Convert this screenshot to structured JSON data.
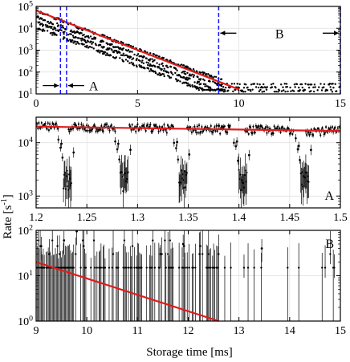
{
  "figure": {
    "ylabel": "Rate [s",
    "ylabel_sup": "-1",
    "ylabel_end": "]",
    "xlabel": "Storage time [ms]"
  },
  "chart_data": [
    {
      "panel": "top",
      "type": "scatter",
      "title": "",
      "xlim": [
        0,
        15
      ],
      "ylim": [
        10,
        100000
      ],
      "yscale": "log",
      "x_ticks": [
        "0",
        "5",
        "10",
        "15"
      ],
      "y_ticks": [
        "10^1",
        "10^2",
        "10^3",
        "10^4",
        "10^5"
      ],
      "grid": true,
      "series": [
        {
          "style": "black dots",
          "x": [
            0.0,
            0.5,
            1.0,
            1.5,
            2.0,
            2.5,
            3.0,
            3.5,
            4.0,
            4.5,
            5.0,
            5.5,
            6.0,
            6.5,
            7.0,
            7.5,
            8.0,
            8.5,
            9.0,
            10.0,
            11.0,
            12.0,
            13.0,
            14.0,
            15.0
          ],
          "y": [
            60000,
            40000,
            28000,
            18000,
            12000,
            8000,
            5500,
            3700,
            2500,
            1700,
            1100,
            750,
            500,
            330,
            220,
            150,
            100,
            70,
            50,
            25,
            20,
            15,
            15,
            15,
            15
          ]
        },
        {
          "style": "red fit line",
          "x": [
            0,
            10
          ],
          "y": [
            65000,
            16
          ]
        }
      ],
      "annotations": [
        {
          "type": "vline",
          "x": 1.2,
          "color": "#1515ff"
        },
        {
          "type": "vline",
          "x": 1.5,
          "color": "#1515ff"
        },
        {
          "type": "vline",
          "x": 9.0,
          "color": "#1515ff"
        },
        {
          "type": "vline",
          "x": 15.0,
          "color": "#1515ff"
        },
        {
          "type": "label",
          "text": "A"
        },
        {
          "type": "label",
          "text": "B"
        }
      ]
    },
    {
      "panel": "A",
      "type": "scatter",
      "label": "A",
      "xlim": [
        1.2,
        1.5
      ],
      "ylim": [
        600,
        30000
      ],
      "yscale": "log",
      "x_ticks": [
        "1.2",
        "1.25",
        "1.3",
        "1.35",
        "1.4",
        "1.45",
        "1.5"
      ],
      "y_ticks": [
        "10^3",
        "10^4"
      ],
      "grid": true,
      "series": [
        {
          "style": "black points with error bars",
          "high_segments": [
            [
              1.2,
              1.222
            ],
            [
              1.232,
              1.278
            ],
            [
              1.292,
              1.336
            ],
            [
              1.349,
              1.392
            ],
            [
              1.406,
              1.454
            ],
            [
              1.466,
              1.5
            ]
          ],
          "high_rate": 20000,
          "dips": [
            1.228,
            1.284,
            1.342,
            1.401,
            1.462
          ],
          "dip_rate": 2000
        },
        {
          "style": "red fit line",
          "x": [
            1.2,
            1.5
          ],
          "y": [
            20000,
            16500
          ]
        }
      ]
    },
    {
      "panel": "B",
      "type": "scatter",
      "label": "B",
      "xlim": [
        9,
        15
      ],
      "ylim": [
        1,
        100
      ],
      "yscale": "log",
      "x_ticks": [
        "9",
        "10",
        "11",
        "12",
        "13",
        "14",
        "15"
      ],
      "y_ticks": [
        "10^0",
        "10^1",
        "10^2"
      ],
      "grid": true,
      "series": [
        {
          "style": "black points with error bars",
          "baseline_rate": 15,
          "dense_until": 12.6
        },
        {
          "style": "red fit line",
          "x": [
            9,
            12.6
          ],
          "y": [
            20,
            1
          ]
        }
      ]
    }
  ],
  "colors": {
    "fit": "#e01b1b",
    "markers": "#1515ff",
    "data": "#000000",
    "grid": "#dddddd"
  }
}
